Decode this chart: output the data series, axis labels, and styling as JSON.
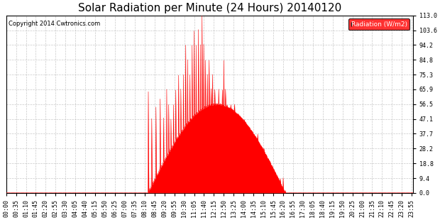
{
  "title": "Solar Radiation per Minute (24 Hours) 20140120",
  "copyright": "Copyright 2014 Cwtronics.com",
  "legend_label": "Radiation (W/m2)",
  "ylabel_ticks": [
    0.0,
    9.4,
    18.8,
    28.2,
    37.7,
    47.1,
    56.5,
    65.9,
    75.3,
    84.8,
    94.2,
    103.6,
    113.0
  ],
  "ymax": 113.0,
  "ymin": 0.0,
  "fill_color": "#ff0000",
  "line_color": "#ff0000",
  "bg_color": "#ffffff",
  "grid_color": "#bbbbbb",
  "hline_color": "#ff0000",
  "title_fontsize": 11,
  "tick_fontsize": 6,
  "sunrise_min": 502,
  "sunset_min": 988,
  "peak_min": 770,
  "peak_val": 113.0
}
